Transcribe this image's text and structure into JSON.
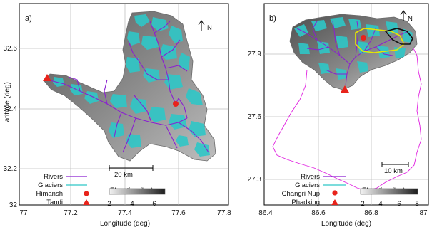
{
  "panels": [
    {
      "id": "a",
      "label": "a)",
      "xlabel": "Longitude (deg)",
      "ylabel": "Latitude (deg)",
      "xticks": [
        "77",
        "77.2",
        "77.4",
        "77.6",
        "77.8"
      ],
      "yticks": [
        "32.6",
        "32.4",
        "32.2",
        "32"
      ],
      "scale_bar": "20 km",
      "north": "N",
      "legend": {
        "rivers": "Rivers",
        "glaciers": "Glaciers",
        "site1": "Himansh",
        "site2": "Tandi"
      },
      "colorbar": {
        "title": "Elevation (km)",
        "ticks": [
          "2",
          "4",
          "6"
        ]
      }
    },
    {
      "id": "b",
      "label": "b)",
      "xlabel": "Longitude (deg)",
      "ylabel": "",
      "xticks": [
        "86.4",
        "86.6",
        "86.8",
        "87"
      ],
      "yticks": [
        "27.9",
        "27.6",
        "27.3"
      ],
      "scale_bar": "10 km",
      "north": "N",
      "legend": {
        "rivers": "Rivers",
        "glaciers": "Glaciers",
        "site1": "Changri Nup",
        "site2": "Phadking"
      },
      "colorbar": {
        "title": "Elevation (km)",
        "ticks": [
          "2",
          "4",
          "6",
          "8"
        ]
      }
    }
  ],
  "colors": {
    "rivers": "#8a1fd1",
    "glaciers": "#2fc7c7",
    "marker": "#e8231b",
    "boundary": "#e020e0",
    "highlight_yellow": "#e6e600",
    "highlight_black": "#111111"
  }
}
